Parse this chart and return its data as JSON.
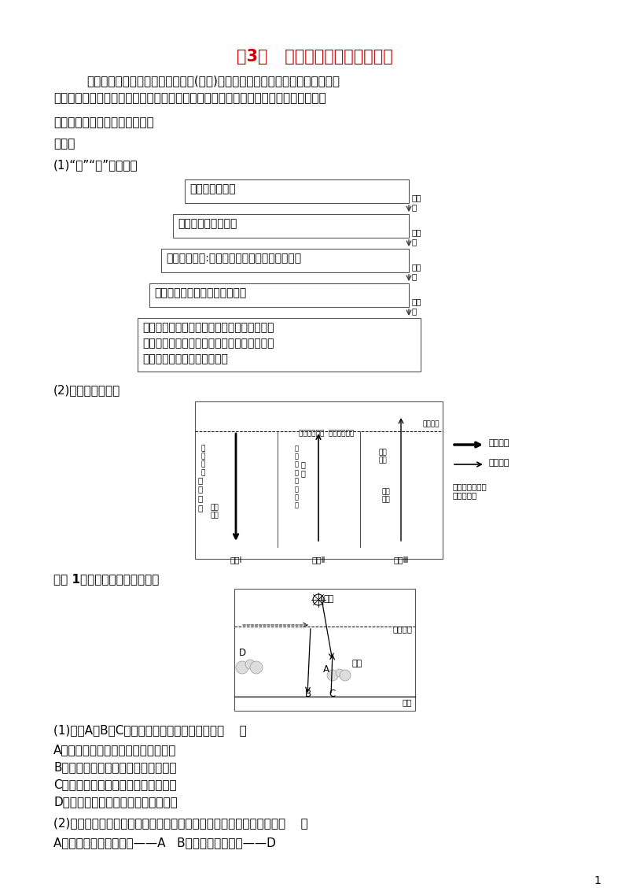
{
  "title": "第3讲   用因果推导法珠串大气圈",
  "title_color": "#CC0000",
  "body_line1": "大气圈的所有知识均与大气的热量(温度)和运动有关，热是动的原因，动因热而",
  "body_line2": "异。利用这一方法学习，可轻松理解大气部分的原理和现象，并能提高做题的正确率。",
  "section1": "一、因果分析大气圈的垂直分层",
  "section1_sub": "对流层",
  "section1_sub2": "(1)“热”“动”因果关系",
  "flow_box1": "大气：复杂多变",
  "flow_box2": "运动：对流运动为主",
  "flow_box3": "气温分布特点:随高度升高而降低（上冷下热）",
  "flow_box4": "热源：对流层大气热量来自地面",
  "flow_box5a": "大气的组成成分和热力性质：对流层集中了大",
  "flow_box5b": "气层绝大部分的水汽和二氧化碳，二者吸收地",
  "flow_box5c": "面红外线长波辐射使大气增温",
  "arrow_label": "为什\n么",
  "section2_sub": "(2)大气的受热过程",
  "example_label": "《例 1》读图，完成下列问题。",
  "q1": "(1)图中A、B、C三个箭头所表示的辐射依次是（    ）",
  "q1a": "A．大气逆辐射、地面辐射、太阳辐射",
  "q1b": "B．太阳辐射、大气逆辐射、地面辐射",
  "q1c": "C．地面辐射、大气逆辐射、太阳辐射",
  "q1d": "D．太阳辐射、地面辐射、大气逆辐射",
  "q2": "(2)大气对地面的保温作用以及它们在图中对应字母的组合，正确的是（    ）",
  "q2ab": "A．到达地面的太阳辐射——A   B．大气的反射作用——D",
  "page_num": "1",
  "bg_color": "#ffffff"
}
